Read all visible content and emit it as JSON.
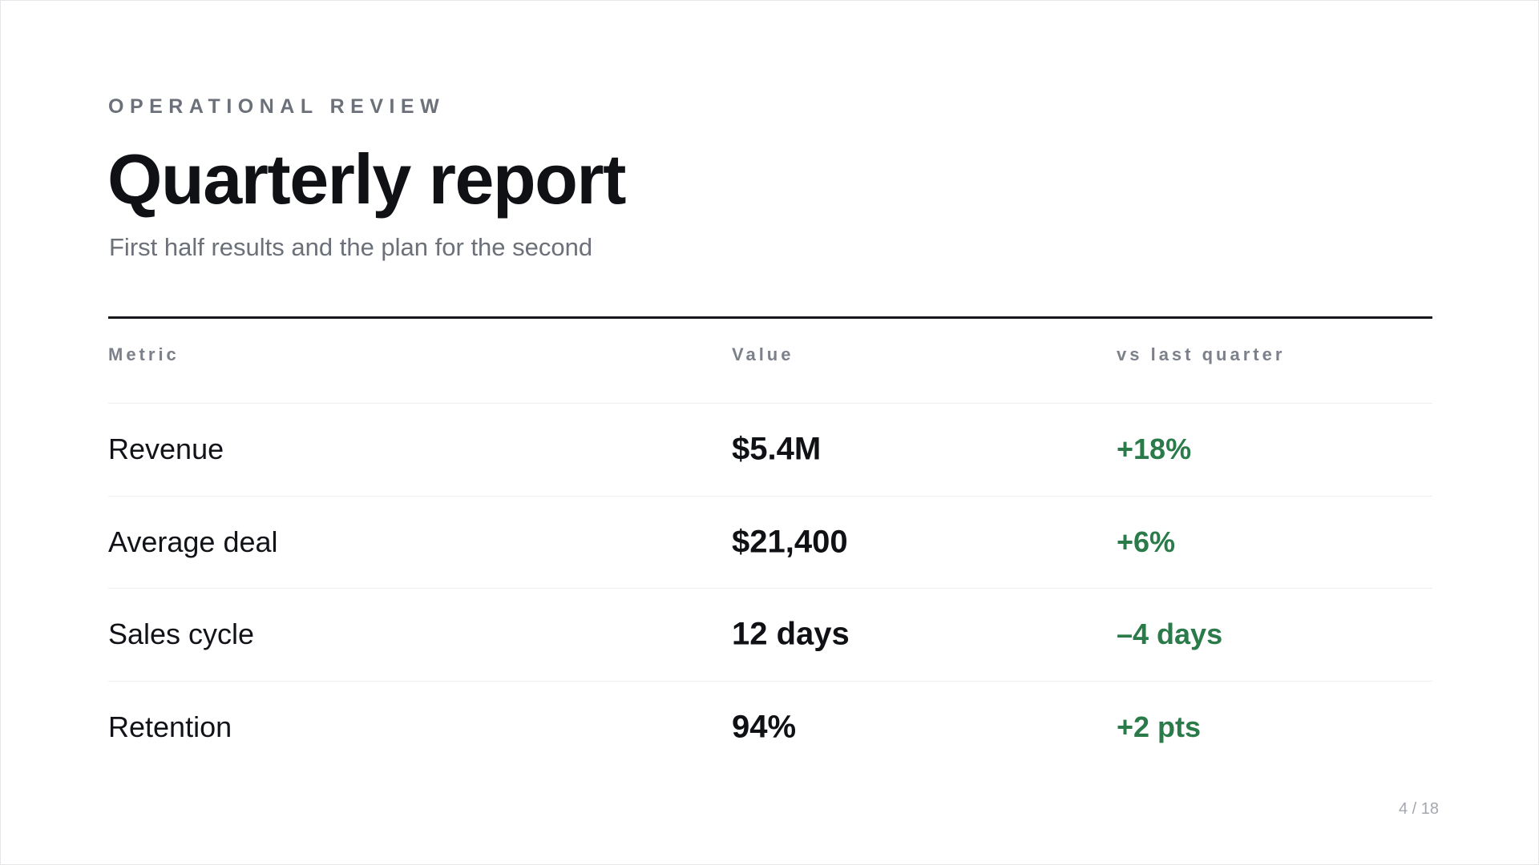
{
  "slide": {
    "eyebrow": "OPERATIONAL REVIEW",
    "title": "Quarterly report",
    "subtitle": "First half results and the plan for the second",
    "page_number": "4 / 18"
  },
  "table": {
    "headers": [
      "Metric",
      "Value",
      "vs last quarter"
    ],
    "rows": [
      {
        "metric": "Revenue",
        "value": "$5.4M",
        "delta": "+18%"
      },
      {
        "metric": "Average deal",
        "value": "$21,400",
        "delta": "+6%"
      },
      {
        "metric": "Sales cycle",
        "value": "12 days",
        "delta": "–4 days"
      },
      {
        "metric": "Retention",
        "value": "94%",
        "delta": "+2 pts"
      }
    ]
  },
  "colors": {
    "positive": "#2a7a4a",
    "muted": "#6b7079",
    "text": "#111318"
  }
}
